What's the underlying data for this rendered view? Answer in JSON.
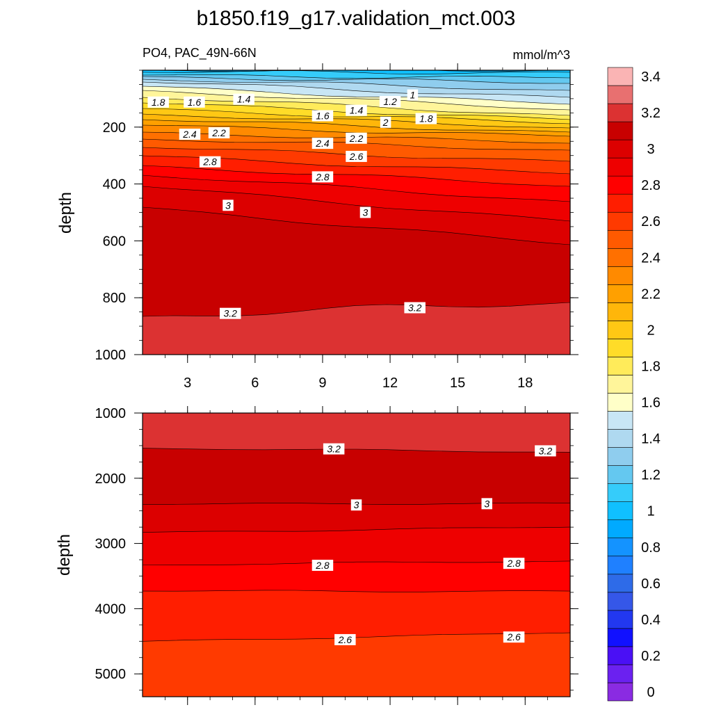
{
  "title": "b1850.f19_g17.validation_mct.003",
  "chart_data": [
    {
      "type": "heatmap",
      "subtitle_left": "PO4, PAC_49N-66N",
      "subtitle_right": "mmol/m^3",
      "ylabel": "depth",
      "xlim": [
        1,
        20
      ],
      "ylim": [
        1000,
        0
      ],
      "x_ticks": [
        3,
        6,
        9,
        12,
        15,
        18
      ],
      "x_tick_labels": [
        "3",
        "6",
        "9",
        "12",
        "15",
        "18"
      ],
      "y_ticks": [
        200,
        400,
        600,
        800,
        1000
      ],
      "y_tick_labels": [
        "200",
        "400",
        "600",
        "800",
        "1000"
      ],
      "contour_labels": [
        {
          "x": 1.7,
          "y": 112,
          "text": "1.8"
        },
        {
          "x": 3.3,
          "y": 112,
          "text": "1.6"
        },
        {
          "x": 5.5,
          "y": 102,
          "text": "1.4"
        },
        {
          "x": 12.0,
          "y": 110,
          "text": "1.2"
        },
        {
          "x": 13.0,
          "y": 87,
          "text": "1"
        },
        {
          "x": 9.0,
          "y": 160,
          "text": "1.6"
        },
        {
          "x": 10.5,
          "y": 141,
          "text": "1.4"
        },
        {
          "x": 11.8,
          "y": 183,
          "text": "2"
        },
        {
          "x": 13.6,
          "y": 170,
          "text": "1.8"
        },
        {
          "x": 3.1,
          "y": 225,
          "text": "2.4"
        },
        {
          "x": 4.4,
          "y": 220,
          "text": "2.2"
        },
        {
          "x": 9.0,
          "y": 257,
          "text": "2.4"
        },
        {
          "x": 10.5,
          "y": 239,
          "text": "2.2"
        },
        {
          "x": 10.5,
          "y": 303,
          "text": "2.6"
        },
        {
          "x": 4.0,
          "y": 322,
          "text": "2.8"
        },
        {
          "x": 9.0,
          "y": 375,
          "text": "2.8"
        },
        {
          "x": 4.8,
          "y": 475,
          "text": "3"
        },
        {
          "x": 10.9,
          "y": 500,
          "text": "3"
        },
        {
          "x": 4.9,
          "y": 855,
          "text": "3.2"
        },
        {
          "x": 13.1,
          "y": 835,
          "text": "3.2"
        }
      ]
    },
    {
      "type": "heatmap",
      "ylabel": "depth",
      "xlim": [
        1,
        20
      ],
      "ylim": [
        5350,
        1000
      ],
      "y_ticks": [
        1000,
        2000,
        3000,
        4000,
        5000
      ],
      "y_tick_labels": [
        "1000",
        "2000",
        "3000",
        "4000",
        "5000"
      ],
      "contour_labels": [
        {
          "x": 9.5,
          "y": 1550,
          "text": "3.2"
        },
        {
          "x": 18.9,
          "y": 1580,
          "text": "3.2"
        },
        {
          "x": 10.5,
          "y": 2410,
          "text": "3"
        },
        {
          "x": 16.3,
          "y": 2390,
          "text": "3"
        },
        {
          "x": 9.0,
          "y": 3335,
          "text": "2.8"
        },
        {
          "x": 17.5,
          "y": 3305,
          "text": "2.8"
        },
        {
          "x": 10.0,
          "y": 4475,
          "text": "2.6"
        },
        {
          "x": 17.5,
          "y": 4435,
          "text": "2.6"
        }
      ]
    }
  ],
  "colorbar": {
    "tick_labels": [
      "0",
      "0.2",
      "0.4",
      "0.6",
      "0.8",
      "1",
      "1.2",
      "1.4",
      "1.6",
      "1.8",
      "2",
      "2.2",
      "2.4",
      "2.6",
      "2.8",
      "3",
      "3.2",
      "3.4"
    ],
    "colors": [
      "#8a2be2",
      "#6b21f0",
      "#4a10f5",
      "#1111ff",
      "#2238f0",
      "#3557e8",
      "#2e6be8",
      "#1f80ff",
      "#1493ff",
      "#00aaff",
      "#10c0ff",
      "#35ccfa",
      "#64c8f0",
      "#8fcdee",
      "#afd9f0",
      "#c8e6f5",
      "#ffffc8",
      "#fff59a",
      "#ffeb5a",
      "#ffdc28",
      "#ffc814",
      "#ffb60a",
      "#ffa000",
      "#ff8a00",
      "#ff7000",
      "#ff5a00",
      "#ff3a00",
      "#ff1e00",
      "#ff0000",
      "#ee0000",
      "#dc0000",
      "#c80000",
      "#dc3232",
      "#e87070",
      "#fab4b4"
    ]
  }
}
